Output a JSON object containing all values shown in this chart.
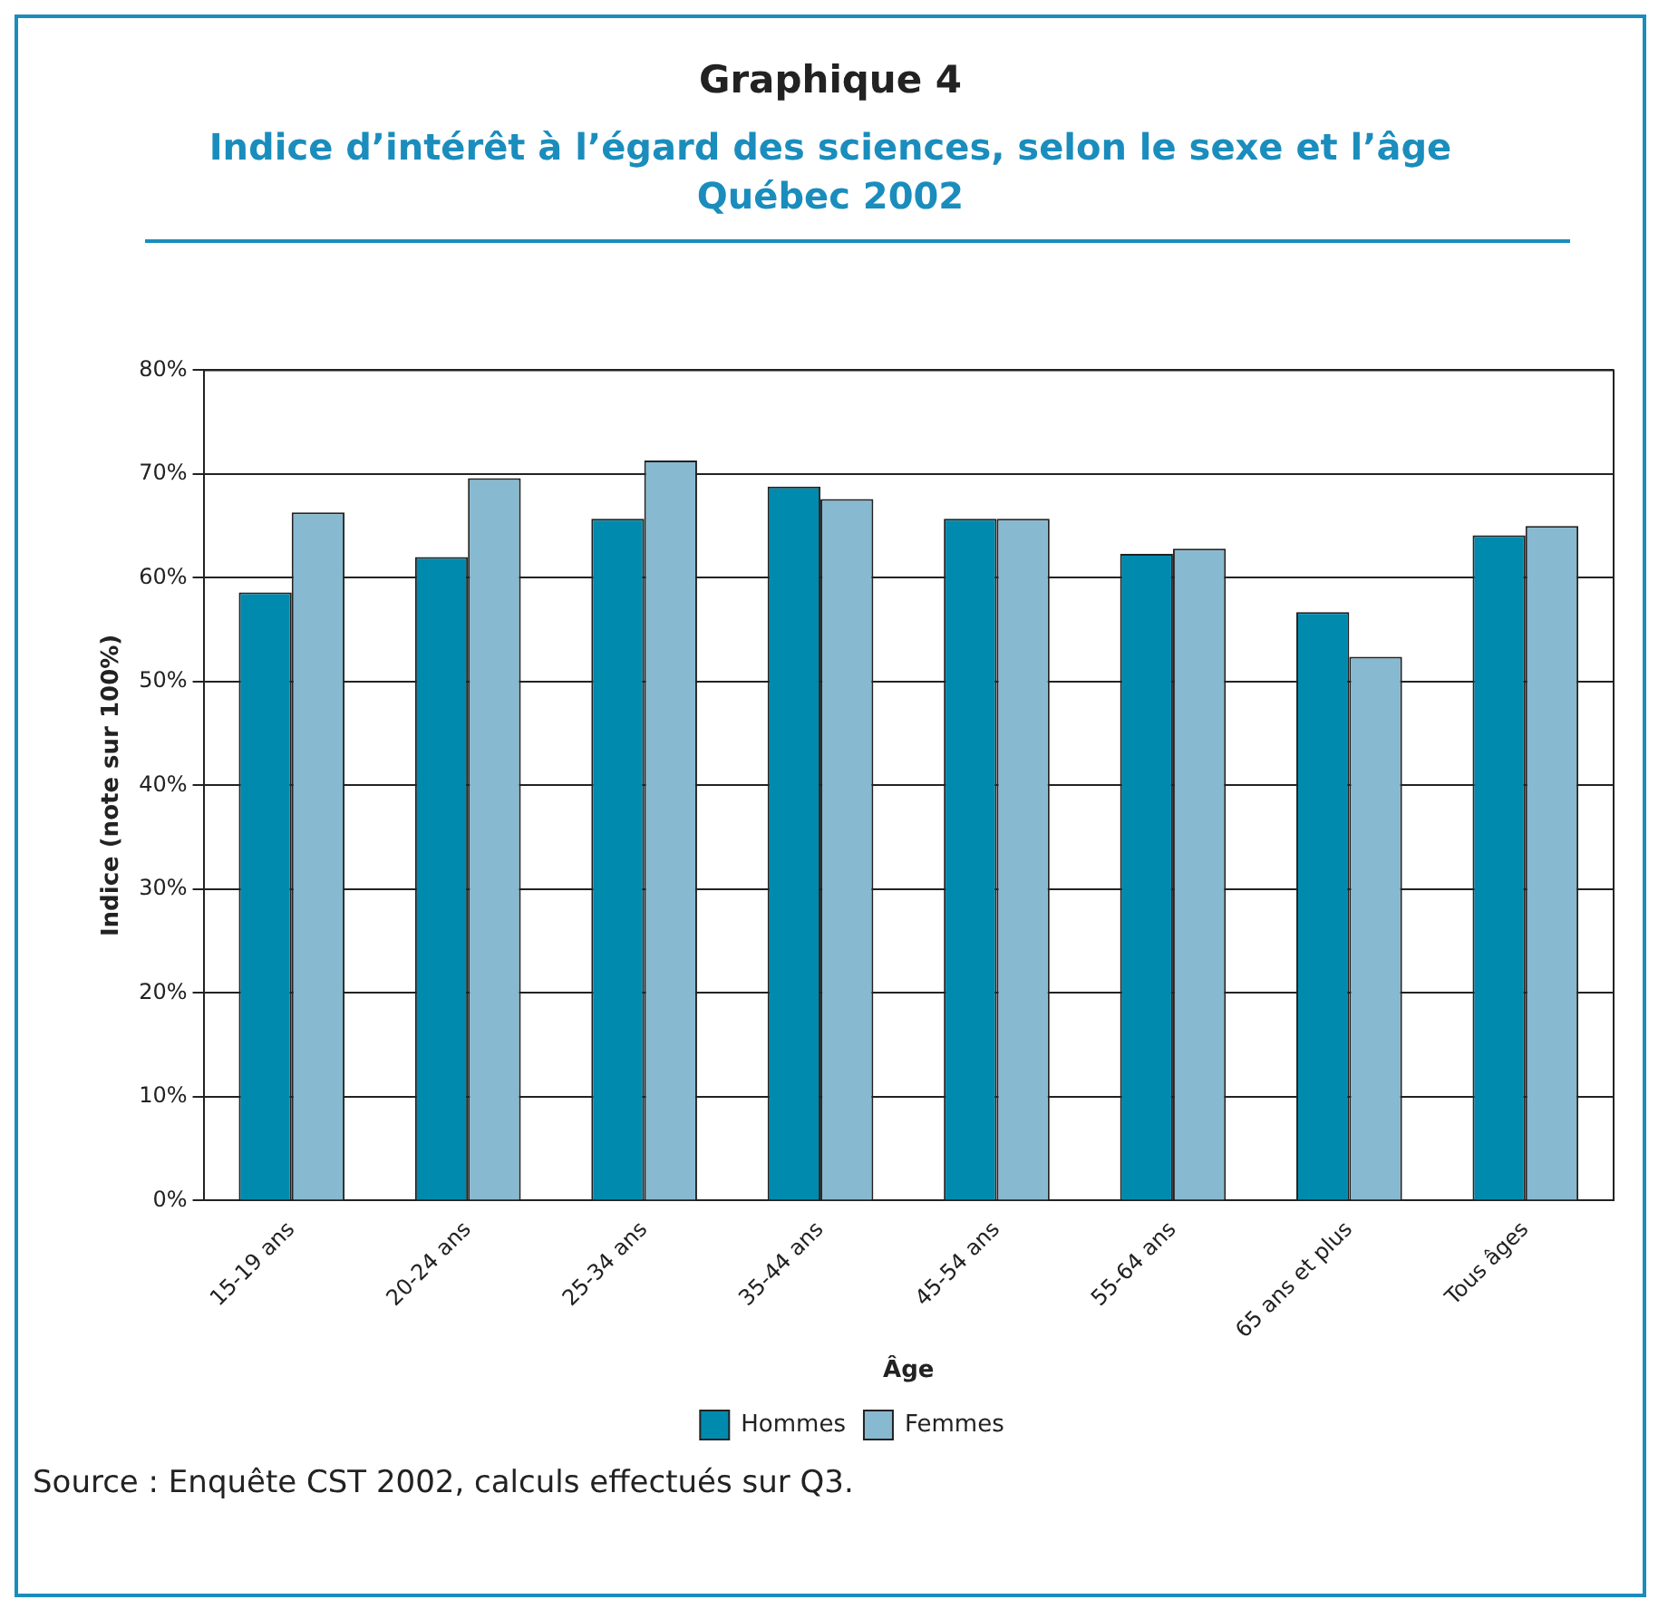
{
  "chart_data": {
    "type": "bar",
    "title": "Graphique 4",
    "subtitle": "Indice d’intérêt à l’égard des sciences, selon le sexe et l’âge\nQuébec 2002",
    "xlabel": "Âge",
    "ylabel": "Indice (note sur 100%)",
    "categories": [
      "15-19 ans",
      "20-24 ans",
      "25-34 ans",
      "35-44 ans",
      "45-54 ans",
      "55-64 ans",
      "65 ans et plus",
      "Tous âges"
    ],
    "series": [
      {
        "name": "Hommes",
        "color": "#008aae",
        "values": [
          58.6,
          62.0,
          65.7,
          68.8,
          65.7,
          62.3,
          56.7,
          64.1
        ]
      },
      {
        "name": "Femmes",
        "color": "#87b9d0",
        "values": [
          66.3,
          69.6,
          71.3,
          67.6,
          65.7,
          62.8,
          52.4,
          65.0
        ]
      }
    ],
    "ylim": [
      0,
      80
    ],
    "yticks": [
      {
        "value": 0,
        "label": "0%"
      },
      {
        "value": 10,
        "label": "10%"
      },
      {
        "value": 20,
        "label": "20%"
      },
      {
        "value": 30,
        "label": "30%"
      },
      {
        "value": 40,
        "label": "40%"
      },
      {
        "value": 50,
        "label": "50%"
      },
      {
        "value": 60,
        "label": "60%"
      },
      {
        "value": 70,
        "label": "70%"
      },
      {
        "value": 80,
        "label": "80%"
      }
    ],
    "grid": "y",
    "legend": "bottom",
    "annotations": [
      "Source : Enquête CST 2002, calculs effectués sur Q3."
    ]
  }
}
